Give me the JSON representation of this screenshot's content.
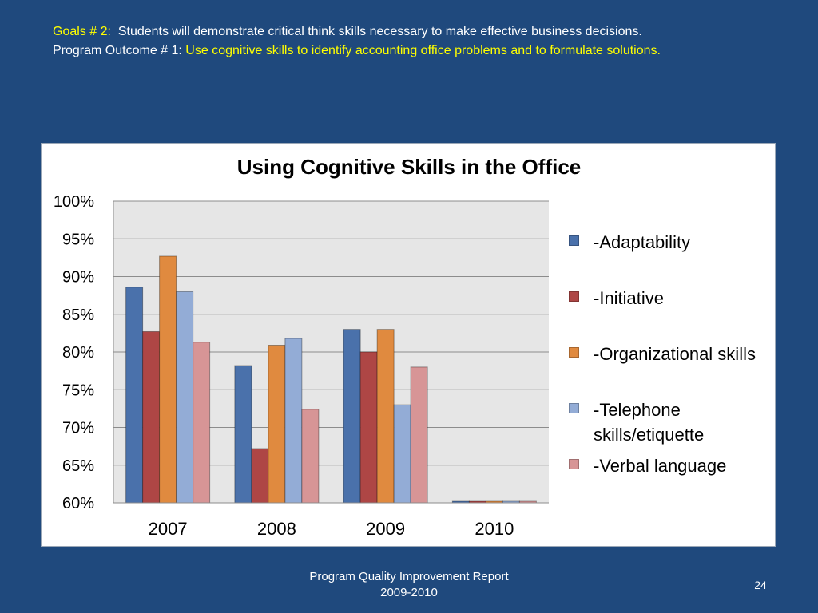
{
  "header": {
    "line1_label": "Goals # 2:",
    "line1_text": "Students will demonstrate critical think skills necessary to make effective business decisions.",
    "line2_label": "Program Outcome # 1:",
    "line2_text": "Use cognitive skills to identify accounting office problems  and to formulate solutions."
  },
  "colors": {
    "background": "#1f497d",
    "highlight": "#ffff00",
    "plot_area": "#e6e6e6",
    "gridline": "#8c8c8c"
  },
  "chart_data": {
    "type": "bar",
    "title": "Using Cognitive Skills in the Office",
    "xlabel": "",
    "ylabel": "",
    "categories": [
      "2007",
      "2008",
      "2009",
      "2010"
    ],
    "ylim": [
      0.6,
      1.0
    ],
    "yticks": [
      "60%",
      "65%",
      "70%",
      "75%",
      "80%",
      "85%",
      "90%",
      "95%",
      "100%"
    ],
    "grid": true,
    "legend_position": "right",
    "series": [
      {
        "name": "-Adaptability",
        "color": "#4a71ab",
        "values": [
          0.886,
          0.782,
          0.83,
          0.6
        ]
      },
      {
        "name": "-Initiative",
        "color": "#ae4645",
        "values": [
          0.827,
          0.672,
          0.8,
          0.6
        ]
      },
      {
        "name": "-Organizational skills",
        "color": "#e08a3f",
        "values": [
          0.927,
          0.809,
          0.83,
          0.6
        ]
      },
      {
        "name": "-Telephone skills/etiquette",
        "color": "#93acd6",
        "values": [
          0.88,
          0.818,
          0.73,
          0.6
        ]
      },
      {
        "name": "-Verbal language",
        "color": "#d79596",
        "values": [
          0.813,
          0.724,
          0.78,
          0.6
        ]
      }
    ]
  },
  "footer": {
    "line1": "Program Quality Improvement Report",
    "line2": "2009-2010",
    "page_number": "24"
  }
}
